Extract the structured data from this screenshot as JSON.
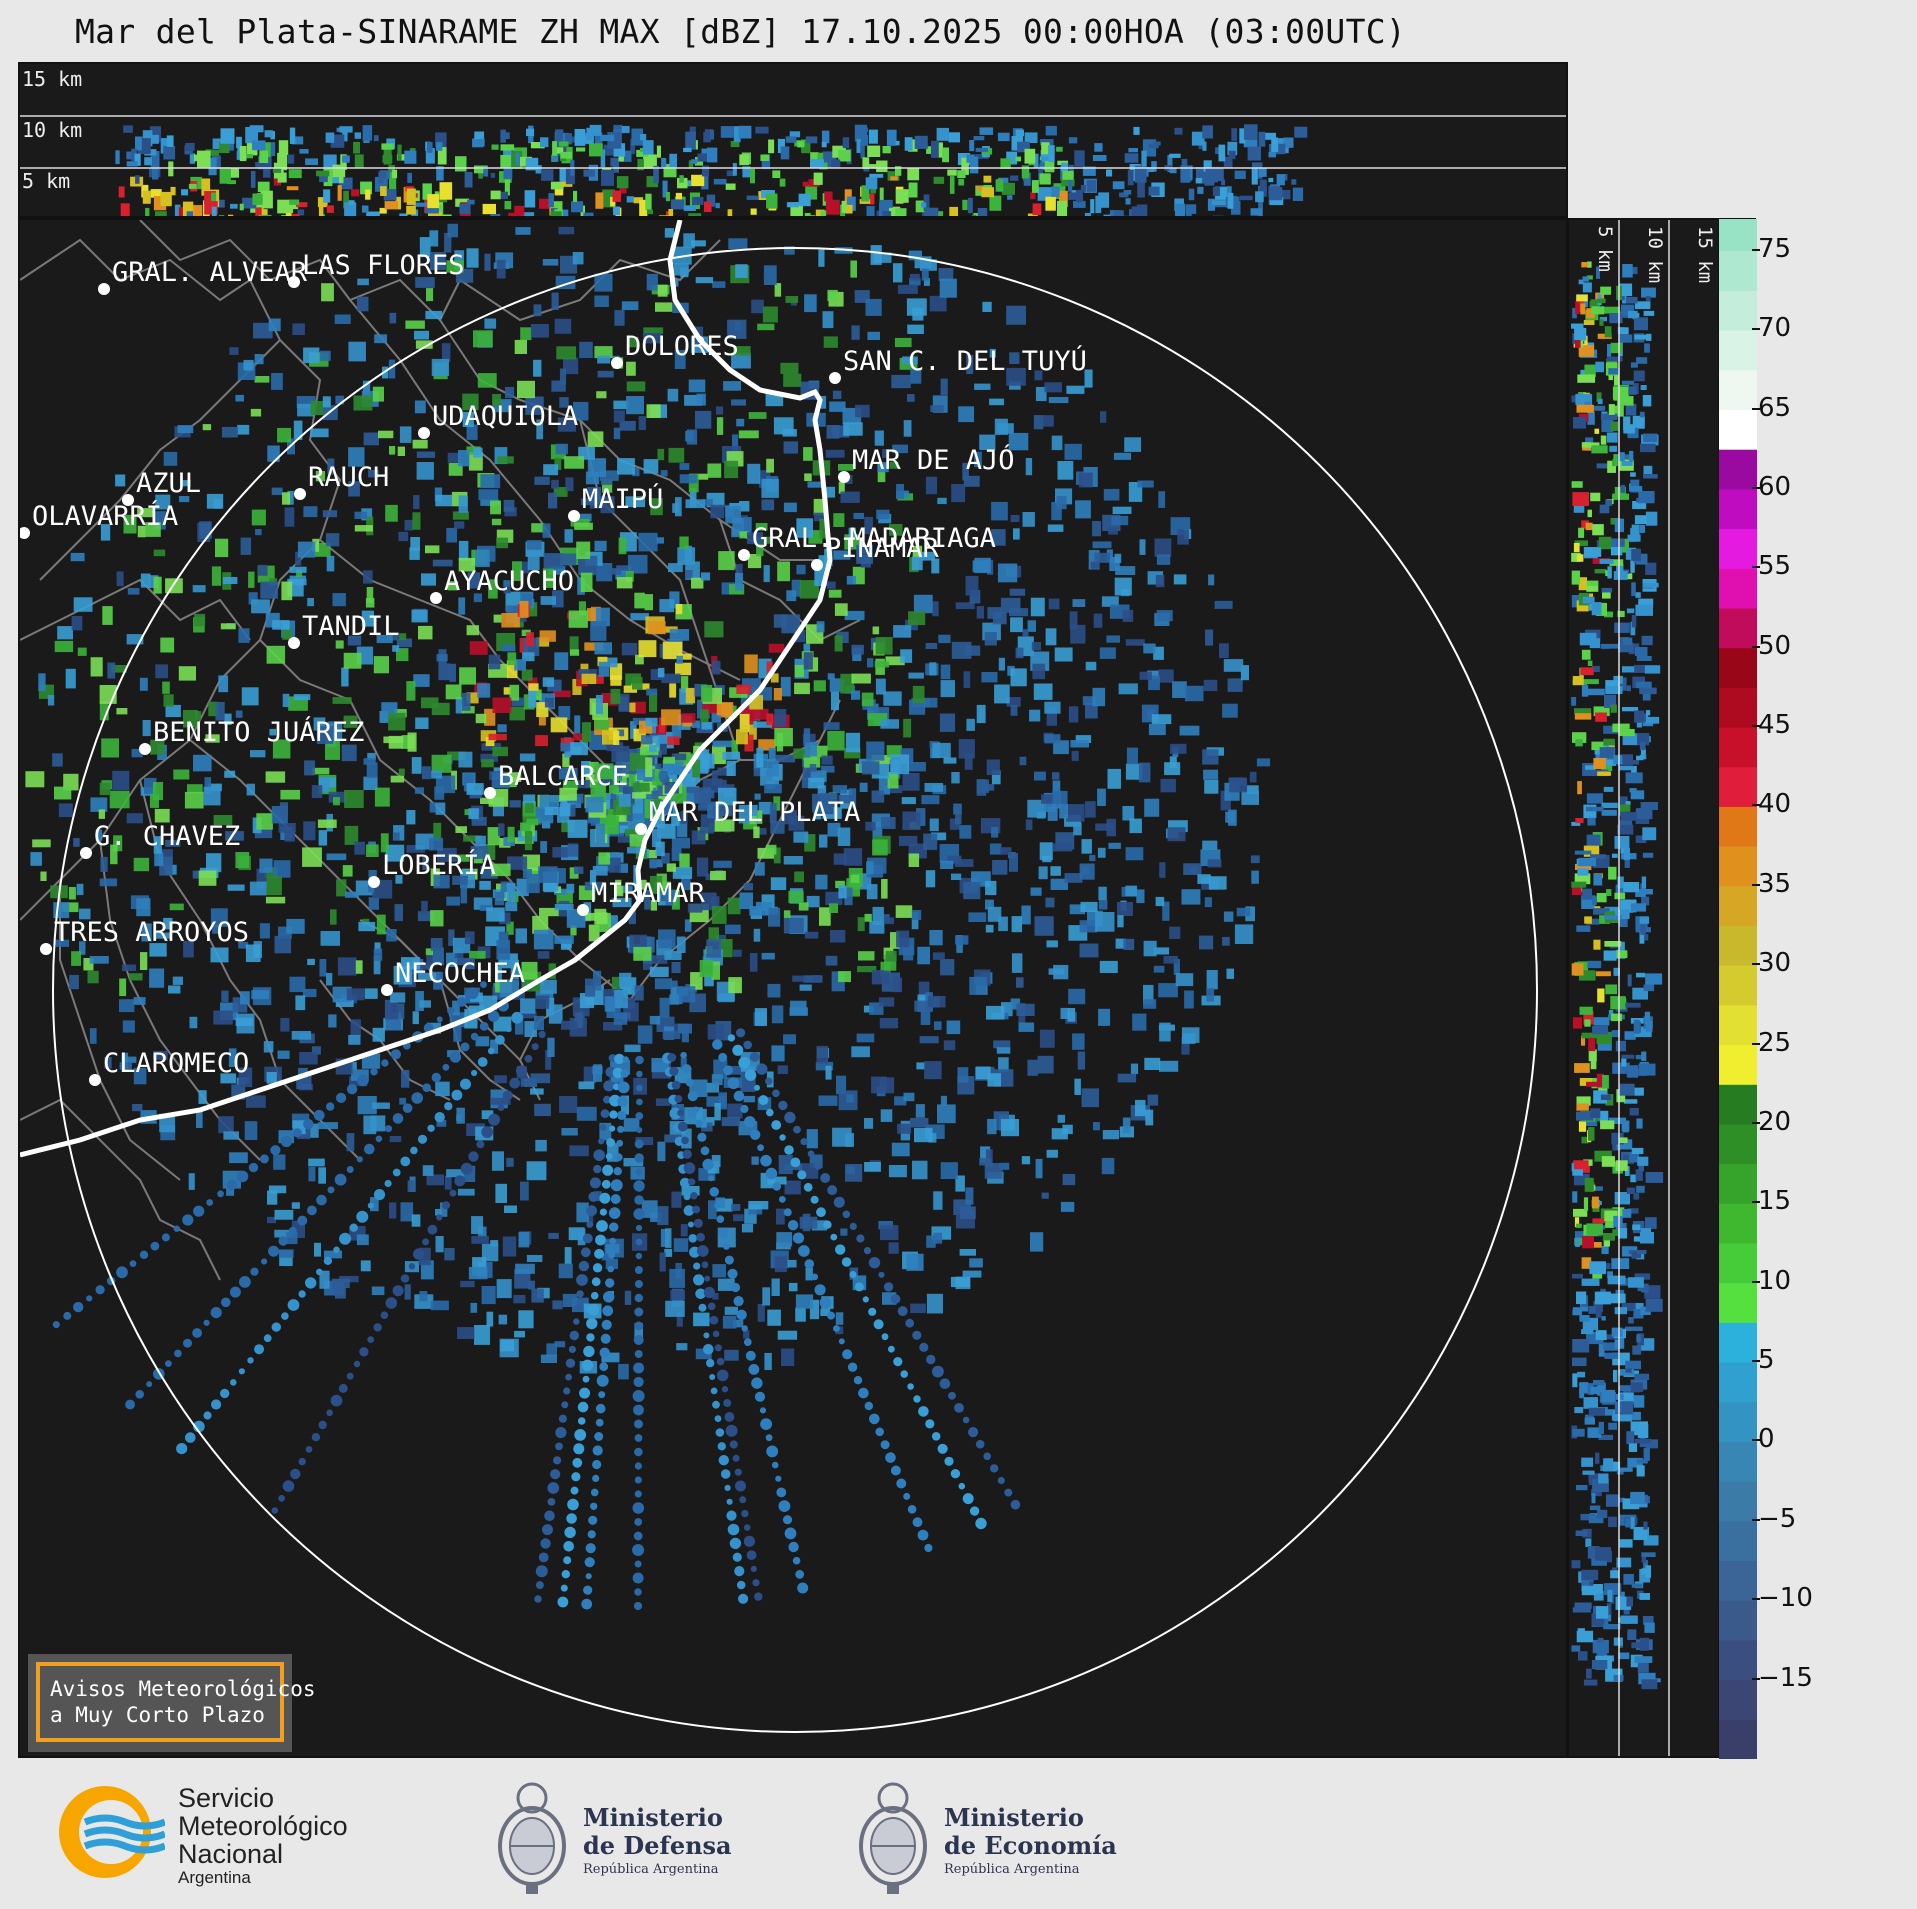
{
  "title": "Mar del Plata-SINARAME ZH MAX [dBZ] 17.10.2025 00:00HOA (03:00UTC)",
  "top_panel": {
    "labels": [
      "15 km",
      "10 km",
      "5 km"
    ]
  },
  "side_panel": {
    "labels": [
      "5 km",
      "10 km",
      "15 km"
    ]
  },
  "cities": [
    {
      "name": "GRAL. ALVEAR"
    },
    {
      "name": "LAS FLORES"
    },
    {
      "name": "DOLORES"
    },
    {
      "name": "SAN C. DEL TUYÚ"
    },
    {
      "name": "UDAQUIOLA"
    },
    {
      "name": "MAR DE AJÓ"
    },
    {
      "name": "AZUL"
    },
    {
      "name": "RAUCH"
    },
    {
      "name": "MAIPÚ"
    },
    {
      "name": "OLAVARRÍA"
    },
    {
      "name": "GRAL. MADARIAGA"
    },
    {
      "name": "PINAMAR"
    },
    {
      "name": "AYACUCHO"
    },
    {
      "name": "TANDIL"
    },
    {
      "name": "BENITO JUÁREZ"
    },
    {
      "name": "BALCARCE"
    },
    {
      "name": "MAR DEL PLATA"
    },
    {
      "name": "G. CHAVEZ"
    },
    {
      "name": "LOBERÍA"
    },
    {
      "name": "MIRAMAR"
    },
    {
      "name": "TRES ARROYOS"
    },
    {
      "name": "NECOCHEA"
    },
    {
      "name": "CLAROMECO"
    }
  ],
  "notice": {
    "line1": "Avisos Meteorológicos",
    "line2": "a Muy Corto Plazo",
    "border_color": "#f0a020"
  },
  "colorbar": {
    "ticks": [
      "75",
      "70",
      "65",
      "60",
      "55",
      "50",
      "45",
      "40",
      "35",
      "30",
      "25",
      "20",
      "15",
      "10",
      "5",
      "0",
      "−5",
      "−10",
      "−15"
    ],
    "min": -20,
    "max": 77
  },
  "footer": {
    "smn": {
      "line1": "Servicio",
      "line2": "Meteorológico",
      "line3": "Nacional",
      "line4": "Argentina"
    },
    "defensa": {
      "line1": "Ministerio",
      "line2": "de Defensa",
      "line3": "República Argentina"
    },
    "economia": {
      "line1": "Ministerio",
      "line2": "de Economía",
      "line3": "República Argentina"
    }
  }
}
